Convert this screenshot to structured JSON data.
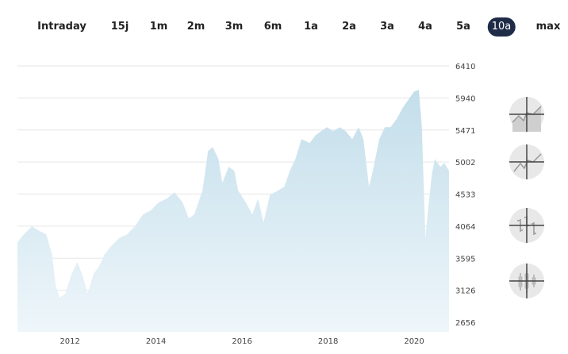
{
  "tabs": [
    {
      "label": "Intraday"
    },
    {
      "label": "15j"
    },
    {
      "label": "1m"
    },
    {
      "label": "2m"
    },
    {
      "label": "3m"
    },
    {
      "label": "6m"
    },
    {
      "label": "1a"
    },
    {
      "label": "2a"
    },
    {
      "label": "3a"
    },
    {
      "label": "4a"
    },
    {
      "label": "5a"
    },
    {
      "label": "10a",
      "active": true
    },
    {
      "label": "max"
    }
  ],
  "tools": [
    {
      "icon": "area-chart-icon"
    },
    {
      "icon": "line-chart-icon"
    },
    {
      "icon": "ohlc-chart-icon"
    },
    {
      "icon": "candlestick-chart-icon"
    }
  ],
  "colors": {
    "fill_top": "#c3deeb",
    "fill_bottom": "#eef6fa",
    "active_tab": "#1f2b47",
    "grid": "#e6e6e6"
  },
  "chart_data": {
    "type": "area",
    "title": "",
    "xlabel": "",
    "ylabel": "",
    "grid": true,
    "y_axis_position": "right",
    "x_ticks": [
      "2012",
      "2014",
      "2016",
      "2018",
      "2020"
    ],
    "y_ticks": [
      "2656",
      "3126",
      "3595",
      "4064",
      "4533",
      "5002",
      "5471",
      "5940",
      "6410"
    ],
    "xlim": [
      2010.78,
      2020.81
    ],
    "ylim": [
      2656,
      6410
    ],
    "x": [
      2010.78,
      2010.93,
      2011.12,
      2011.26,
      2011.45,
      2011.58,
      2011.67,
      2011.76,
      2011.89,
      2012.04,
      2012.17,
      2012.28,
      2012.41,
      2012.55,
      2012.68,
      2012.81,
      2012.96,
      2013.14,
      2013.33,
      2013.51,
      2013.7,
      2013.88,
      2014.06,
      2014.25,
      2014.43,
      2014.62,
      2014.76,
      2014.89,
      2015.08,
      2015.21,
      2015.32,
      2015.45,
      2015.54,
      2015.69,
      2015.82,
      2015.91,
      2016.09,
      2016.24,
      2016.37,
      2016.5,
      2016.65,
      2016.83,
      2016.98,
      2017.11,
      2017.24,
      2017.38,
      2017.57,
      2017.71,
      2017.84,
      2017.97,
      2018.12,
      2018.27,
      2018.41,
      2018.56,
      2018.71,
      2018.82,
      2018.95,
      2019.04,
      2019.19,
      2019.32,
      2019.45,
      2019.59,
      2019.74,
      2019.87,
      2020.0,
      2020.11,
      2020.18,
      2020.26,
      2020.33,
      2020.41,
      2020.48,
      2020.61,
      2020.7,
      2020.81
    ],
    "values": [
      3829,
      3945,
      4061,
      4003,
      3945,
      3654,
      3190,
      3016,
      3074,
      3364,
      3538,
      3364,
      3074,
      3364,
      3480,
      3654,
      3771,
      3887,
      3945,
      4061,
      4235,
      4293,
      4409,
      4467,
      4560,
      4409,
      4177,
      4235,
      4583,
      5164,
      5222,
      5048,
      4699,
      4932,
      4874,
      4583,
      4409,
      4235,
      4467,
      4119,
      4525,
      4583,
      4641,
      4874,
      5048,
      5338,
      5280,
      5396,
      5454,
      5512,
      5454,
      5512,
      5454,
      5338,
      5512,
      5338,
      4641,
      4874,
      5338,
      5512,
      5512,
      5628,
      5802,
      5918,
      6034,
      6058,
      5512,
      3887,
      4351,
      4815,
      5048,
      4932,
      4990,
      4874
    ]
  }
}
